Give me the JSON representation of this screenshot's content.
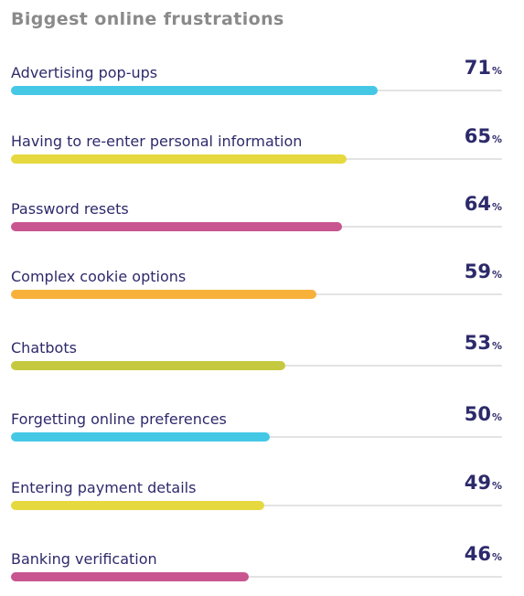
{
  "chart_data": {
    "type": "bar",
    "orientation": "horizontal",
    "title": "Biggest online frustrations",
    "unit": "%",
    "xlim": [
      0,
      100
    ],
    "categories": [
      "Advertising pop-ups",
      "Having to re-enter personal information",
      "Password resets",
      "Complex cookie options",
      "Chatbots",
      "Forgetting online preferences",
      "Entering payment details",
      "Banking verification"
    ],
    "values": [
      71,
      65,
      64,
      59,
      53,
      50,
      49,
      46
    ],
    "colors": [
      "#45c8e6",
      "#e6d93f",
      "#c85590",
      "#f7b13a",
      "#c5c93f",
      "#45c8e6",
      "#e6d93f",
      "#c85590"
    ]
  }
}
